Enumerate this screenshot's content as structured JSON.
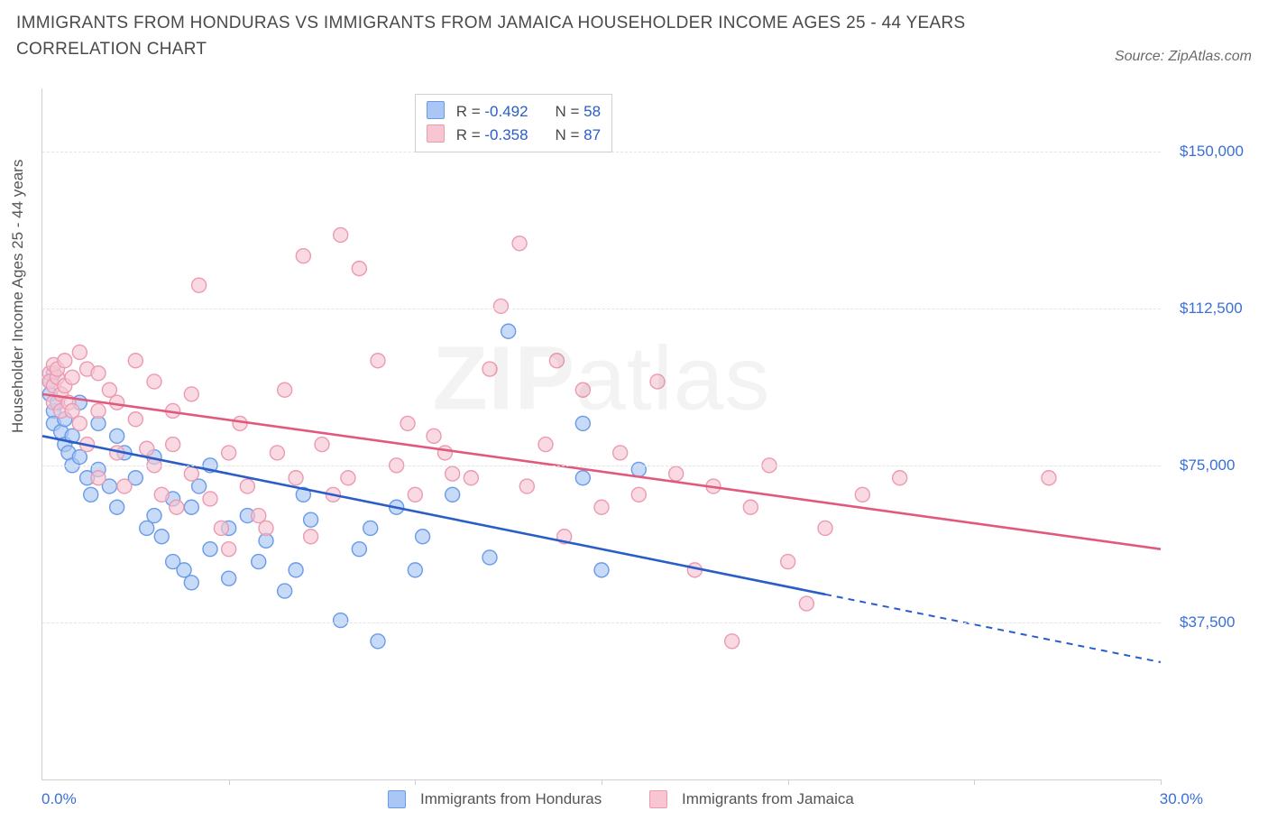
{
  "title": "IMMIGRANTS FROM HONDURAS VS IMMIGRANTS FROM JAMAICA HOUSEHOLDER INCOME AGES 25 - 44 YEARS CORRELATION CHART",
  "source": "Source: ZipAtlas.com",
  "watermark_strong": "ZIP",
  "watermark_light": "atlas",
  "chart": {
    "type": "scatter",
    "xlim": [
      0,
      30
    ],
    "ylim": [
      0,
      165000
    ],
    "x_axis": {
      "label_min": "0.0%",
      "label_max": "30.0%",
      "tick_positions_pct": [
        16.67,
        33.33,
        50.0,
        66.67,
        83.33,
        100.0
      ]
    },
    "y_axis": {
      "label": "Householder Income Ages 25 - 44 years",
      "ticks": [
        {
          "value": 37500,
          "label": "$37,500"
        },
        {
          "value": 75000,
          "label": "$75,000"
        },
        {
          "value": 112500,
          "label": "$112,500"
        },
        {
          "value": 150000,
          "label": "$150,000"
        }
      ]
    },
    "series": [
      {
        "id": "honduras",
        "name": "Immigrants from Honduras",
        "color_fill": "#a9c6f5",
        "color_stroke": "#6a9be8",
        "line_color": "#2a5dc8",
        "marker_radius": 8,
        "marker_opacity": 0.65,
        "stats": {
          "r": "-0.492",
          "n": "58"
        },
        "trend": {
          "x1": 0,
          "y1": 82000,
          "x2": 30,
          "y2": 28000,
          "solid_until_x": 21
        },
        "points": [
          [
            0.2,
            95000
          ],
          [
            0.2,
            92000
          ],
          [
            0.3,
            88000
          ],
          [
            0.3,
            85000
          ],
          [
            0.3,
            97000
          ],
          [
            0.4,
            90000
          ],
          [
            0.5,
            83000
          ],
          [
            0.6,
            80000
          ],
          [
            0.6,
            86000
          ],
          [
            0.7,
            78000
          ],
          [
            0.8,
            75000
          ],
          [
            0.8,
            82000
          ],
          [
            1.0,
            77000
          ],
          [
            1.0,
            90000
          ],
          [
            1.2,
            72000
          ],
          [
            1.3,
            68000
          ],
          [
            1.5,
            85000
          ],
          [
            1.5,
            74000
          ],
          [
            1.8,
            70000
          ],
          [
            2.0,
            82000
          ],
          [
            2.0,
            65000
          ],
          [
            2.2,
            78000
          ],
          [
            2.5,
            72000
          ],
          [
            2.8,
            60000
          ],
          [
            3.0,
            63000
          ],
          [
            3.0,
            77000
          ],
          [
            3.2,
            58000
          ],
          [
            3.5,
            67000
          ],
          [
            3.5,
            52000
          ],
          [
            3.8,
            50000
          ],
          [
            4.0,
            65000
          ],
          [
            4.0,
            47000
          ],
          [
            4.2,
            70000
          ],
          [
            4.5,
            55000
          ],
          [
            4.5,
            75000
          ],
          [
            5.0,
            48000
          ],
          [
            5.0,
            60000
          ],
          [
            5.5,
            63000
          ],
          [
            5.8,
            52000
          ],
          [
            6.0,
            57000
          ],
          [
            6.5,
            45000
          ],
          [
            6.8,
            50000
          ],
          [
            7.0,
            68000
          ],
          [
            7.2,
            62000
          ],
          [
            8.0,
            38000
          ],
          [
            8.5,
            55000
          ],
          [
            8.8,
            60000
          ],
          [
            9.0,
            33000
          ],
          [
            9.5,
            65000
          ],
          [
            10.0,
            50000
          ],
          [
            10.2,
            58000
          ],
          [
            11.0,
            68000
          ],
          [
            12.0,
            53000
          ],
          [
            12.5,
            107000
          ],
          [
            14.5,
            72000
          ],
          [
            14.5,
            85000
          ],
          [
            15.0,
            50000
          ],
          [
            16.0,
            74000
          ]
        ]
      },
      {
        "id": "jamaica",
        "name": "Immigrants from Jamaica",
        "color_fill": "#f7c6d2",
        "color_stroke": "#ec9ab0",
        "line_color": "#e05a7d",
        "marker_radius": 8,
        "marker_opacity": 0.65,
        "stats": {
          "r": "-0.358",
          "n": "87"
        },
        "trend": {
          "x1": 0,
          "y1": 92000,
          "x2": 30,
          "y2": 55000,
          "solid_until_x": 30
        },
        "points": [
          [
            0.2,
            97000
          ],
          [
            0.2,
            95000
          ],
          [
            0.3,
            99000
          ],
          [
            0.3,
            94000
          ],
          [
            0.3,
            90000
          ],
          [
            0.4,
            96000
          ],
          [
            0.4,
            98000
          ],
          [
            0.5,
            92000
          ],
          [
            0.5,
            88000
          ],
          [
            0.6,
            100000
          ],
          [
            0.6,
            94000
          ],
          [
            0.7,
            90000
          ],
          [
            0.8,
            96000
          ],
          [
            0.8,
            88000
          ],
          [
            1.0,
            102000
          ],
          [
            1.0,
            85000
          ],
          [
            1.2,
            98000
          ],
          [
            1.2,
            80000
          ],
          [
            1.5,
            97000
          ],
          [
            1.5,
            88000
          ],
          [
            1.5,
            72000
          ],
          [
            1.8,
            93000
          ],
          [
            2.0,
            78000
          ],
          [
            2.0,
            90000
          ],
          [
            2.2,
            70000
          ],
          [
            2.5,
            100000
          ],
          [
            2.5,
            86000
          ],
          [
            2.8,
            79000
          ],
          [
            3.0,
            75000
          ],
          [
            3.0,
            95000
          ],
          [
            3.2,
            68000
          ],
          [
            3.5,
            80000
          ],
          [
            3.5,
            88000
          ],
          [
            3.6,
            65000
          ],
          [
            4.0,
            92000
          ],
          [
            4.0,
            73000
          ],
          [
            4.2,
            118000
          ],
          [
            4.5,
            67000
          ],
          [
            4.8,
            60000
          ],
          [
            5.0,
            78000
          ],
          [
            5.0,
            55000
          ],
          [
            5.3,
            85000
          ],
          [
            5.5,
            70000
          ],
          [
            5.8,
            63000
          ],
          [
            6.0,
            60000
          ],
          [
            6.3,
            78000
          ],
          [
            6.5,
            93000
          ],
          [
            6.8,
            72000
          ],
          [
            7.0,
            125000
          ],
          [
            7.2,
            58000
          ],
          [
            7.5,
            80000
          ],
          [
            7.8,
            68000
          ],
          [
            8.0,
            130000
          ],
          [
            8.2,
            72000
          ],
          [
            8.5,
            122000
          ],
          [
            9.0,
            100000
          ],
          [
            9.5,
            75000
          ],
          [
            9.8,
            85000
          ],
          [
            10.0,
            68000
          ],
          [
            10.5,
            82000
          ],
          [
            10.8,
            78000
          ],
          [
            11.0,
            73000
          ],
          [
            11.5,
            72000
          ],
          [
            12.0,
            98000
          ],
          [
            12.3,
            113000
          ],
          [
            12.8,
            128000
          ],
          [
            13.0,
            70000
          ],
          [
            13.5,
            80000
          ],
          [
            13.8,
            100000
          ],
          [
            14.0,
            58000
          ],
          [
            14.5,
            93000
          ],
          [
            15.0,
            65000
          ],
          [
            15.5,
            78000
          ],
          [
            16.0,
            68000
          ],
          [
            16.5,
            95000
          ],
          [
            17.0,
            73000
          ],
          [
            17.5,
            50000
          ],
          [
            18.0,
            70000
          ],
          [
            18.5,
            33000
          ],
          [
            19.0,
            65000
          ],
          [
            19.5,
            75000
          ],
          [
            20.0,
            52000
          ],
          [
            20.5,
            42000
          ],
          [
            21.0,
            60000
          ],
          [
            22.0,
            68000
          ],
          [
            23.0,
            72000
          ],
          [
            27.0,
            72000
          ]
        ]
      }
    ],
    "colors": {
      "axis": "#cfcfcf",
      "grid": "#e4e4e4",
      "text_axis": "#3a6fd8",
      "text_body": "#555555",
      "background": "#ffffff"
    }
  },
  "legend": {
    "series1_label": "Immigrants from Honduras",
    "series2_label": "Immigrants from Jamaica"
  }
}
